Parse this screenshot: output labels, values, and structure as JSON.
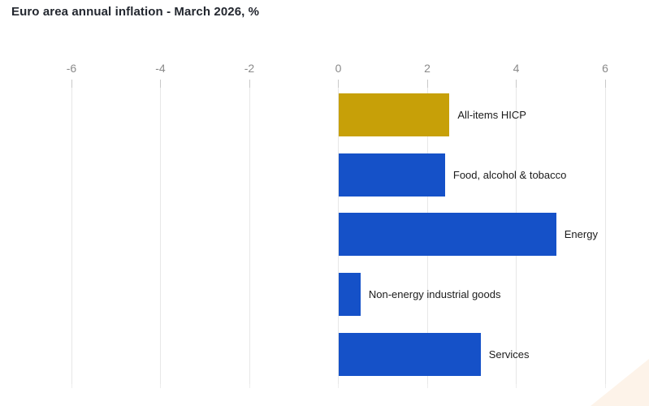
{
  "title": "Euro area annual inflation - March 2026, %",
  "chart_data": {
    "type": "bar",
    "orientation": "horizontal",
    "title": "Euro area annual inflation - March 2026, %",
    "unit": "%",
    "categories": [
      "All-items HICP",
      "Food, alcohol & tobacco",
      "Energy",
      "Non-energy industrial goods",
      "Services"
    ],
    "values": [
      2.5,
      2.4,
      4.9,
      0.5,
      3.2
    ],
    "bar_colors": [
      "#C7A008",
      "#1551C8",
      "#1551C8",
      "#1551C8",
      "#1551C8"
    ],
    "xlim": [
      -6,
      6
    ],
    "x_ticks": [
      -6,
      -4,
      -2,
      0,
      2,
      4,
      6
    ],
    "grid": true,
    "legend": "none",
    "category_label_position": "right-of-bar",
    "axis_label_position": "top"
  },
  "colors": {
    "accent_gold": "#C7A008",
    "accent_blue": "#1551C8",
    "gridline": "#E7E7E7",
    "tick_label": "#8A8A8A",
    "category_label": "#1B1B1B",
    "title_text": "#23272F",
    "background": "#FFFFFF"
  }
}
